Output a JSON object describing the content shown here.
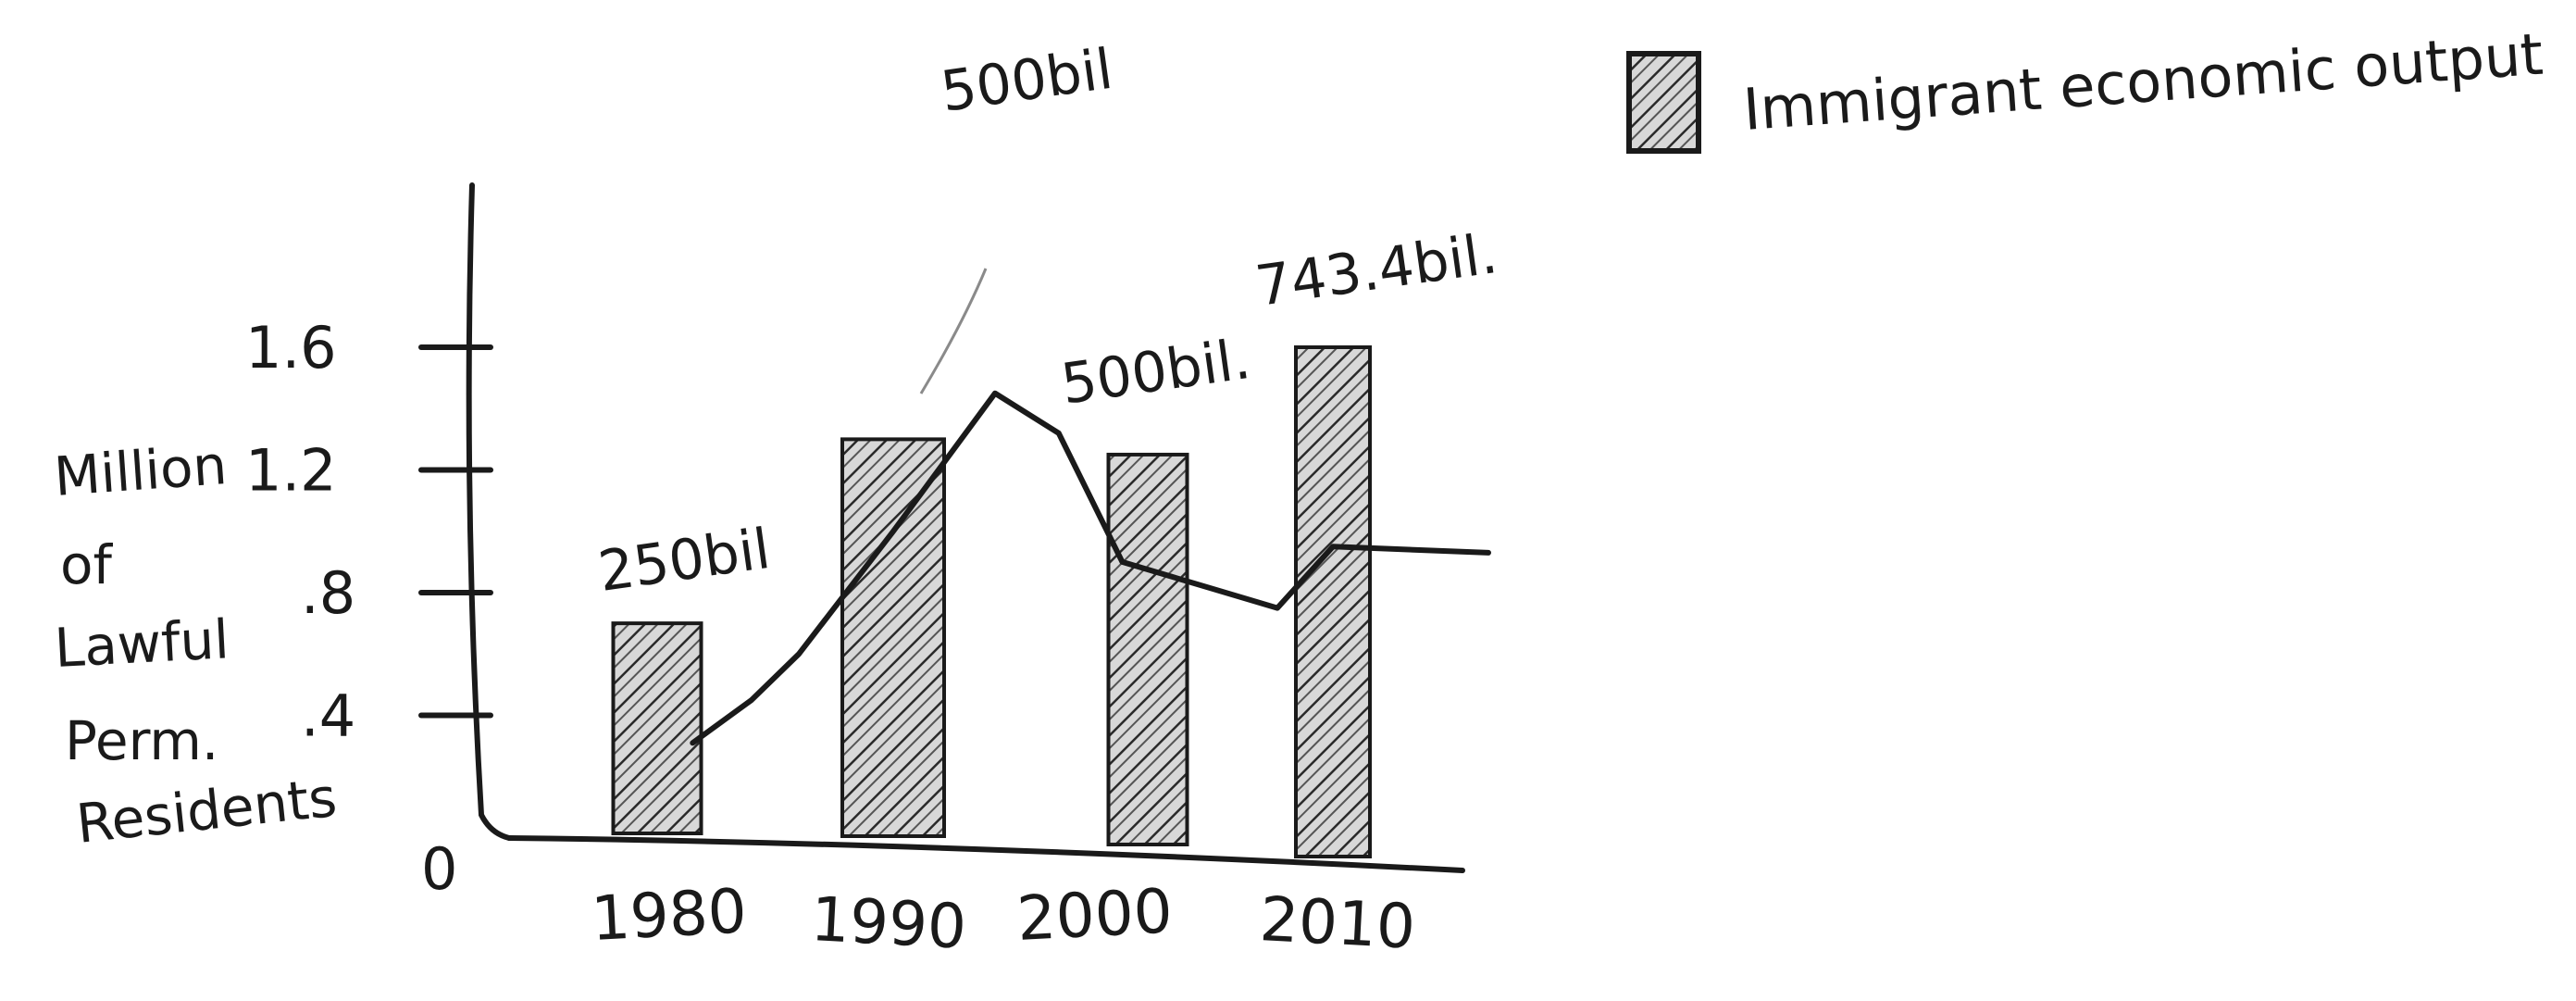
{
  "chart_data": {
    "type": "bar",
    "categories": [
      "1980",
      "1990",
      "2000",
      "2010"
    ],
    "ylabel_lines": [
      "Million",
      "of",
      "Lawful",
      "Perm.",
      "Residents"
    ],
    "y_ticks": [
      "0",
      ".4",
      ".8",
      "1.2",
      "1.6"
    ],
    "ylim": [
      0,
      1.6
    ],
    "series": [
      {
        "name": "Immigrant economic output",
        "type": "bar",
        "values": [
          0.7,
          1.3,
          1.25,
          1.6
        ],
        "data_labels": [
          "250bil",
          "500bil",
          "500bil.",
          "743.4bil."
        ]
      },
      {
        "type": "line",
        "x": [
          0.15,
          0.4,
          0.6,
          1.0,
          1.4,
          1.65,
          1.9,
          2.7,
          3.0,
          3.7
        ],
        "values": [
          0.31,
          0.45,
          0.6,
          1.0,
          1.45,
          1.32,
          0.9,
          0.75,
          0.95,
          0.93
        ]
      }
    ],
    "legend": {
      "placement": "top-right",
      "label": "Immigrant economic output"
    },
    "colors": {
      "ink": "#1a1a1a",
      "hatch": "#2a2a2a",
      "bar_fill": "#d8d8d8"
    }
  }
}
